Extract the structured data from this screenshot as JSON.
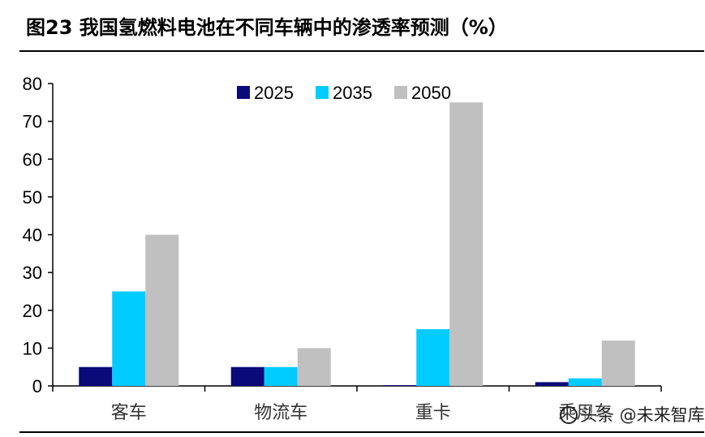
{
  "title": "图23 我国氢燃料电池在不同车辆中的渗透率预测（%）",
  "watermark": "头条 @未来智库",
  "colors": {
    "2025": "#0a0a78",
    "2035": "#00ccff",
    "2050": "#c0c0c0"
  },
  "chart_data": {
    "type": "bar",
    "title": "图23 我国氢燃料电池在不同车辆中的渗透率预测（%）",
    "categories": [
      "客车",
      "物流车",
      "重卡",
      "乘用车"
    ],
    "series": [
      {
        "name": "2025",
        "values": [
          5,
          5,
          0.2,
          1
        ]
      },
      {
        "name": "2035",
        "values": [
          25,
          5,
          15,
          2
        ]
      },
      {
        "name": "2050",
        "values": [
          40,
          10,
          75,
          12
        ]
      }
    ],
    "y_ticks": [
      "0",
      "10",
      "20",
      "30",
      "40",
      "50",
      "60",
      "70",
      "80"
    ],
    "ylim": [
      0,
      80
    ],
    "xlabel": "",
    "ylabel": "",
    "grid": false,
    "legend": "top"
  }
}
